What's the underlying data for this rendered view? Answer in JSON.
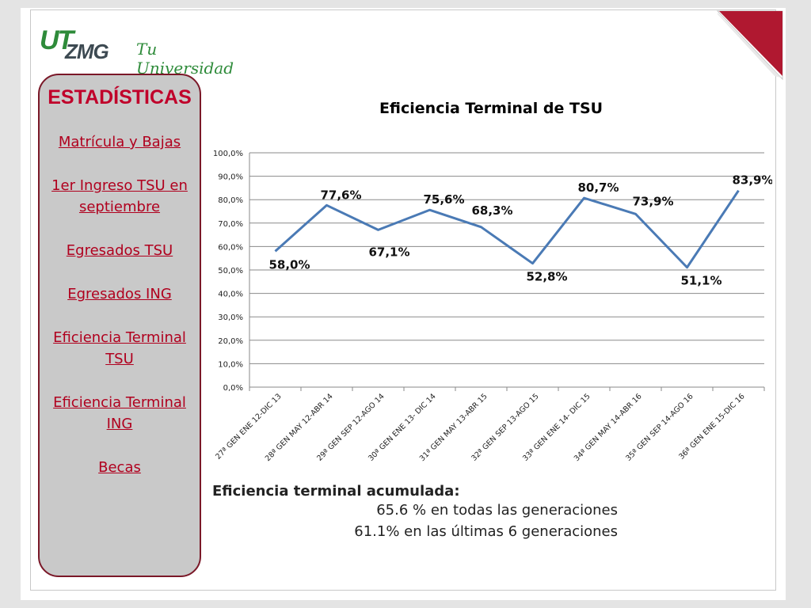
{
  "logo": {
    "ut": "UT",
    "zmg": "ZMG",
    "tagline": "Tu Universidad !"
  },
  "sidebar": {
    "title": "ESTADÍSTICAS",
    "links": [
      "Matrícula y Bajas",
      "1er Ingreso TSU en septiembre",
      "Egresados TSU",
      "Egresados ING",
      "Eficiencia Terminal TSU",
      "Eficiencia Terminal ING",
      "Becas"
    ]
  },
  "summary": {
    "heading": "Eficiencia terminal acumulada:",
    "line1": "65.6 %  en todas las generaciones",
    "line2": "61.1% en las últimas 6 generaciones"
  },
  "colors": {
    "accent": "#c0002a",
    "line": "#4a7ab5",
    "corner": "#b01830"
  },
  "chart_data": {
    "type": "line",
    "title": "Eficiencia Terminal de TSU",
    "categories": [
      "27ª GEN ENE 12-DIC 13",
      "28ª GEN MAY 12-ABR 14",
      "29ª GEN SEP 12-AGO 14",
      "30ª GEN ENE 13- DIC 14",
      "31ª GEN MAY 13-ABR 15",
      "32ª GEN SEP 13-AGO 15",
      "33ª GEN ENE 14- DIC 15",
      "34ª GEN MAY 14-ABR 16",
      "35ª GEN SEP 14-AGO 16",
      "36ª GEN ENE 15-DIC 16"
    ],
    "values": [
      58.0,
      77.6,
      67.1,
      75.6,
      68.3,
      52.8,
      80.7,
      73.9,
      51.1,
      83.9
    ],
    "data_labels": [
      "58,0%",
      "77,6%",
      "67,1%",
      "75,6%",
      "68,3%",
      "52,8%",
      "80,7%",
      "73,9%",
      "51,1%",
      "83,9%"
    ],
    "y_ticks": [
      "0,0%",
      "10,0%",
      "20,0%",
      "30,0%",
      "40,0%",
      "50,0%",
      "60,0%",
      "70,0%",
      "80,0%",
      "90,0%",
      "100,0%"
    ],
    "ylim": [
      0,
      100
    ],
    "grid": true,
    "legend": "none"
  }
}
